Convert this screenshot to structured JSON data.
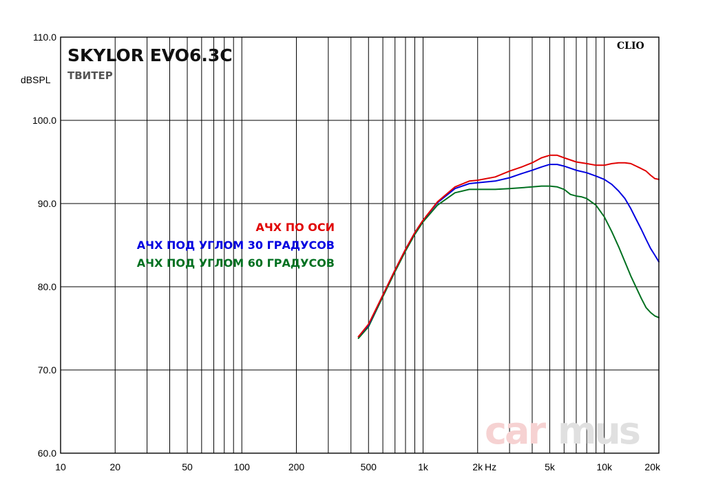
{
  "chart_data": {
    "type": "line",
    "title": "SKYLOR EVO6.3C",
    "subtitle": "ТВИТЕР",
    "ylabel": "dBSPL",
    "x_unit_label": "Hz",
    "watermark_left": "car",
    "watermark_right": "mus",
    "brand_tag": "CLIO",
    "x_scale": "log",
    "xlim": [
      10,
      20000
    ],
    "ylim": [
      60,
      110
    ],
    "grid": true,
    "x_ticks": [
      {
        "value": 10,
        "label": "10"
      },
      {
        "value": 20,
        "label": "20"
      },
      {
        "value": 50,
        "label": "50"
      },
      {
        "value": 100,
        "label": "100"
      },
      {
        "value": 200,
        "label": "200"
      },
      {
        "value": 500,
        "label": "500"
      },
      {
        "value": 1000,
        "label": "1k"
      },
      {
        "value": 2000,
        "label": "2k"
      },
      {
        "value": 5000,
        "label": "5k"
      },
      {
        "value": 10000,
        "label": "10k"
      },
      {
        "value": 20000,
        "label": "20k"
      }
    ],
    "y_ticks": [
      {
        "value": 60,
        "label": "60.0"
      },
      {
        "value": 70,
        "label": "70.0"
      },
      {
        "value": 80,
        "label": "80.0"
      },
      {
        "value": 90,
        "label": "90.0"
      },
      {
        "value": 100,
        "label": "100.0"
      },
      {
        "value": 110,
        "label": "110.0"
      }
    ],
    "legend_position": "center-left",
    "series": [
      {
        "name": "АЧХ ПО ОСИ",
        "color": "#e00000",
        "points": [
          [
            440,
            74.0
          ],
          [
            500,
            75.5
          ],
          [
            600,
            79.0
          ],
          [
            700,
            82.0
          ],
          [
            800,
            84.5
          ],
          [
            900,
            86.5
          ],
          [
            1000,
            88.0
          ],
          [
            1200,
            90.2
          ],
          [
            1500,
            92.0
          ],
          [
            1800,
            92.7
          ],
          [
            2000,
            92.8
          ],
          [
            2500,
            93.2
          ],
          [
            3000,
            93.9
          ],
          [
            3500,
            94.4
          ],
          [
            4000,
            94.9
          ],
          [
            4500,
            95.5
          ],
          [
            5000,
            95.8
          ],
          [
            5500,
            95.8
          ],
          [
            6000,
            95.5
          ],
          [
            7000,
            95.0
          ],
          [
            8000,
            94.8
          ],
          [
            9000,
            94.6
          ],
          [
            10000,
            94.6
          ],
          [
            11000,
            94.8
          ],
          [
            12000,
            94.9
          ],
          [
            13000,
            94.9
          ],
          [
            14000,
            94.8
          ],
          [
            15000,
            94.5
          ],
          [
            16000,
            94.2
          ],
          [
            17000,
            93.9
          ],
          [
            18000,
            93.4
          ],
          [
            19000,
            93.0
          ],
          [
            20000,
            92.9
          ]
        ]
      },
      {
        "name": "АЧХ ПОД УГЛОМ 30 ГРАДУСОВ",
        "color": "#0000e0",
        "points": [
          [
            440,
            74.0
          ],
          [
            500,
            75.4
          ],
          [
            600,
            79.0
          ],
          [
            700,
            82.0
          ],
          [
            800,
            84.5
          ],
          [
            900,
            86.5
          ],
          [
            1000,
            88.0
          ],
          [
            1200,
            90.1
          ],
          [
            1500,
            91.8
          ],
          [
            1800,
            92.4
          ],
          [
            2000,
            92.5
          ],
          [
            2500,
            92.7
          ],
          [
            3000,
            93.1
          ],
          [
            3500,
            93.6
          ],
          [
            4000,
            94.0
          ],
          [
            4500,
            94.4
          ],
          [
            5000,
            94.7
          ],
          [
            5500,
            94.7
          ],
          [
            6000,
            94.5
          ],
          [
            7000,
            94.0
          ],
          [
            8000,
            93.7
          ],
          [
            9000,
            93.3
          ],
          [
            10000,
            92.9
          ],
          [
            11000,
            92.3
          ],
          [
            12000,
            91.5
          ],
          [
            13000,
            90.6
          ],
          [
            14000,
            89.4
          ],
          [
            15000,
            88.1
          ],
          [
            16000,
            86.9
          ],
          [
            17000,
            85.7
          ],
          [
            18000,
            84.6
          ],
          [
            19000,
            83.8
          ],
          [
            20000,
            83.0
          ]
        ]
      },
      {
        "name": "АЧХ ПОД УГЛОМ 60 ГРАДУСОВ",
        "color": "#007020",
        "points": [
          [
            440,
            73.8
          ],
          [
            500,
            75.2
          ],
          [
            600,
            78.8
          ],
          [
            700,
            81.8
          ],
          [
            800,
            84.3
          ],
          [
            900,
            86.3
          ],
          [
            1000,
            87.8
          ],
          [
            1200,
            89.8
          ],
          [
            1500,
            91.3
          ],
          [
            1800,
            91.7
          ],
          [
            2000,
            91.7
          ],
          [
            2500,
            91.7
          ],
          [
            3000,
            91.8
          ],
          [
            3500,
            91.9
          ],
          [
            4000,
            92.0
          ],
          [
            4500,
            92.1
          ],
          [
            5000,
            92.1
          ],
          [
            5500,
            92.0
          ],
          [
            6000,
            91.7
          ],
          [
            6500,
            91.1
          ],
          [
            7000,
            90.9
          ],
          [
            7500,
            90.8
          ],
          [
            8000,
            90.6
          ],
          [
            9000,
            89.8
          ],
          [
            10000,
            88.4
          ],
          [
            11000,
            86.6
          ],
          [
            12000,
            84.8
          ],
          [
            13000,
            83.0
          ],
          [
            14000,
            81.3
          ],
          [
            15000,
            79.9
          ],
          [
            16000,
            78.6
          ],
          [
            17000,
            77.5
          ],
          [
            18000,
            76.9
          ],
          [
            19000,
            76.5
          ],
          [
            20000,
            76.3
          ]
        ]
      }
    ]
  }
}
